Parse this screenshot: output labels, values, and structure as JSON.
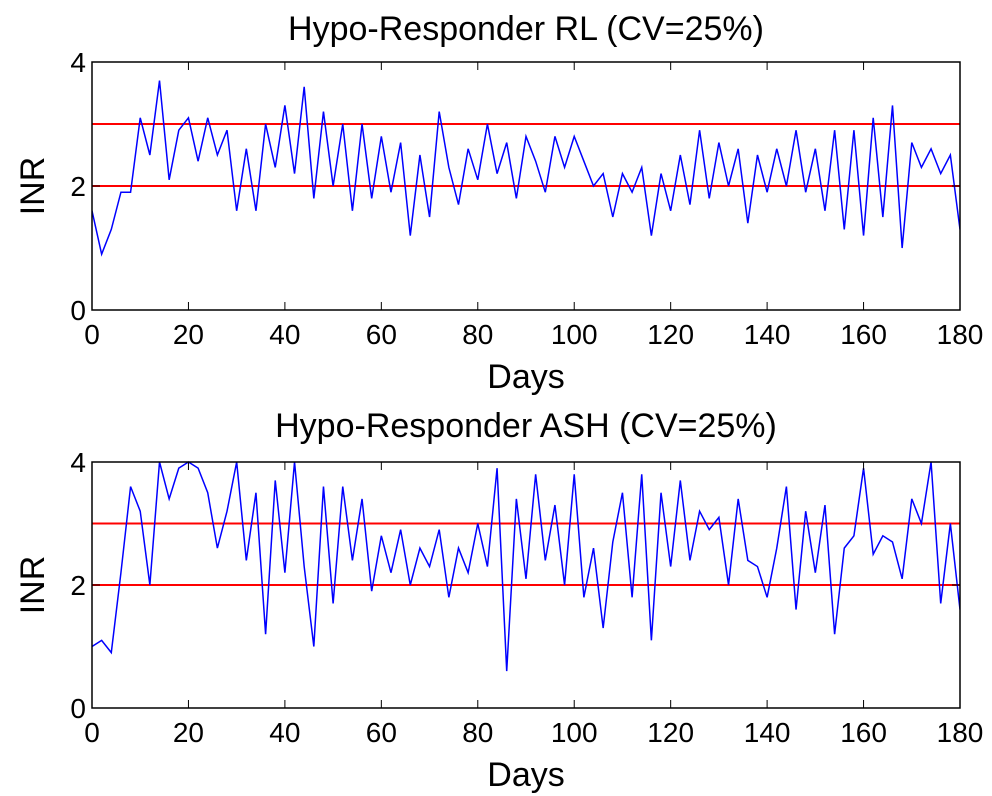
{
  "chart_data": [
    {
      "type": "line",
      "title": "Hypo-Responder RL (CV=25%)",
      "xlabel": "Days",
      "ylabel": "INR",
      "xlim": [
        0,
        180
      ],
      "ylim": [
        0,
        4
      ],
      "xticks": [
        0,
        20,
        40,
        60,
        80,
        100,
        120,
        140,
        160,
        180
      ],
      "yticks": [
        0,
        2,
        4
      ],
      "hlines": [
        2,
        3
      ],
      "hline_color": "#ff0000",
      "x": [
        0,
        2,
        4,
        6,
        8,
        10,
        12,
        14,
        16,
        18,
        20,
        22,
        24,
        26,
        28,
        30,
        32,
        34,
        36,
        38,
        40,
        42,
        44,
        46,
        48,
        50,
        52,
        54,
        56,
        58,
        60,
        62,
        64,
        66,
        68,
        70,
        72,
        74,
        76,
        78,
        80,
        82,
        84,
        86,
        88,
        90,
        92,
        94,
        96,
        98,
        100,
        102,
        104,
        106,
        108,
        110,
        112,
        114,
        116,
        118,
        120,
        122,
        124,
        126,
        128,
        130,
        132,
        134,
        136,
        138,
        140,
        142,
        144,
        146,
        148,
        150,
        152,
        154,
        156,
        158,
        160,
        162,
        164,
        166,
        168,
        170,
        172,
        174,
        176,
        178,
        180
      ],
      "series": [
        {
          "color": "#0000ff",
          "values": [
            1.6,
            0.9,
            1.3,
            1.9,
            1.9,
            3.1,
            2.5,
            3.7,
            2.1,
            2.9,
            3.1,
            2.4,
            3.1,
            2.5,
            2.9,
            1.6,
            2.6,
            1.6,
            3.0,
            2.3,
            3.3,
            2.2,
            3.6,
            1.8,
            3.2,
            2.0,
            3.0,
            1.6,
            3.0,
            1.8,
            2.8,
            1.9,
            2.7,
            1.2,
            2.5,
            1.5,
            3.2,
            2.3,
            1.7,
            2.6,
            2.1,
            3.0,
            2.2,
            2.7,
            1.8,
            2.8,
            2.4,
            1.9,
            2.8,
            2.3,
            2.8,
            2.4,
            2.0,
            2.2,
            1.5,
            2.2,
            1.9,
            2.3,
            1.2,
            2.2,
            1.6,
            2.5,
            1.7,
            2.9,
            1.8,
            2.7,
            2.0,
            2.6,
            1.4,
            2.5,
            1.9,
            2.6,
            2.0,
            2.9,
            1.9,
            2.6,
            1.6,
            2.9,
            1.3,
            2.9,
            1.2,
            3.1,
            1.5,
            3.3,
            1.0,
            2.7,
            2.3,
            2.6,
            2.2,
            2.5,
            1.3
          ]
        }
      ]
    },
    {
      "type": "line",
      "title": "Hypo-Responder ASH (CV=25%)",
      "xlabel": "Days",
      "ylabel": "INR",
      "xlim": [
        0,
        180
      ],
      "ylim": [
        0,
        4
      ],
      "xticks": [
        0,
        20,
        40,
        60,
        80,
        100,
        120,
        140,
        160,
        180
      ],
      "yticks": [
        0,
        2,
        4
      ],
      "hlines": [
        2,
        3
      ],
      "hline_color": "#ff0000",
      "x": [
        0,
        2,
        4,
        6,
        8,
        10,
        12,
        14,
        16,
        18,
        20,
        22,
        24,
        26,
        28,
        30,
        32,
        34,
        36,
        38,
        40,
        42,
        44,
        46,
        48,
        50,
        52,
        54,
        56,
        58,
        60,
        62,
        64,
        66,
        68,
        70,
        72,
        74,
        76,
        78,
        80,
        82,
        84,
        86,
        88,
        90,
        92,
        94,
        96,
        98,
        100,
        102,
        104,
        106,
        108,
        110,
        112,
        114,
        116,
        118,
        120,
        122,
        124,
        126,
        128,
        130,
        132,
        134,
        136,
        138,
        140,
        142,
        144,
        146,
        148,
        150,
        152,
        154,
        156,
        158,
        160,
        162,
        164,
        166,
        168,
        170,
        172,
        174,
        176,
        178,
        180
      ],
      "series": [
        {
          "color": "#0000ff",
          "values": [
            1.0,
            1.1,
            0.9,
            2.2,
            3.6,
            3.2,
            2.0,
            4.0,
            3.4,
            3.9,
            4.0,
            3.9,
            3.5,
            2.6,
            3.2,
            4.0,
            2.4,
            3.5,
            1.2,
            3.7,
            2.2,
            4.0,
            2.3,
            1.0,
            3.6,
            1.7,
            3.6,
            2.4,
            3.4,
            1.9,
            2.8,
            2.2,
            2.9,
            2.0,
            2.6,
            2.3,
            2.9,
            1.8,
            2.6,
            2.2,
            3.0,
            2.3,
            3.9,
            0.6,
            3.4,
            2.1,
            3.8,
            2.4,
            3.3,
            2.0,
            3.8,
            1.8,
            2.6,
            1.3,
            2.7,
            3.5,
            1.8,
            3.8,
            1.1,
            3.5,
            2.3,
            3.7,
            2.4,
            3.2,
            2.9,
            3.1,
            2.0,
            3.4,
            2.4,
            2.3,
            1.8,
            2.6,
            3.6,
            1.6,
            3.2,
            2.2,
            3.3,
            1.2,
            2.6,
            2.8,
            3.9,
            2.5,
            2.8,
            2.7,
            2.1,
            3.4,
            3.0,
            4.0,
            1.7,
            3.0,
            1.6
          ]
        }
      ]
    }
  ]
}
